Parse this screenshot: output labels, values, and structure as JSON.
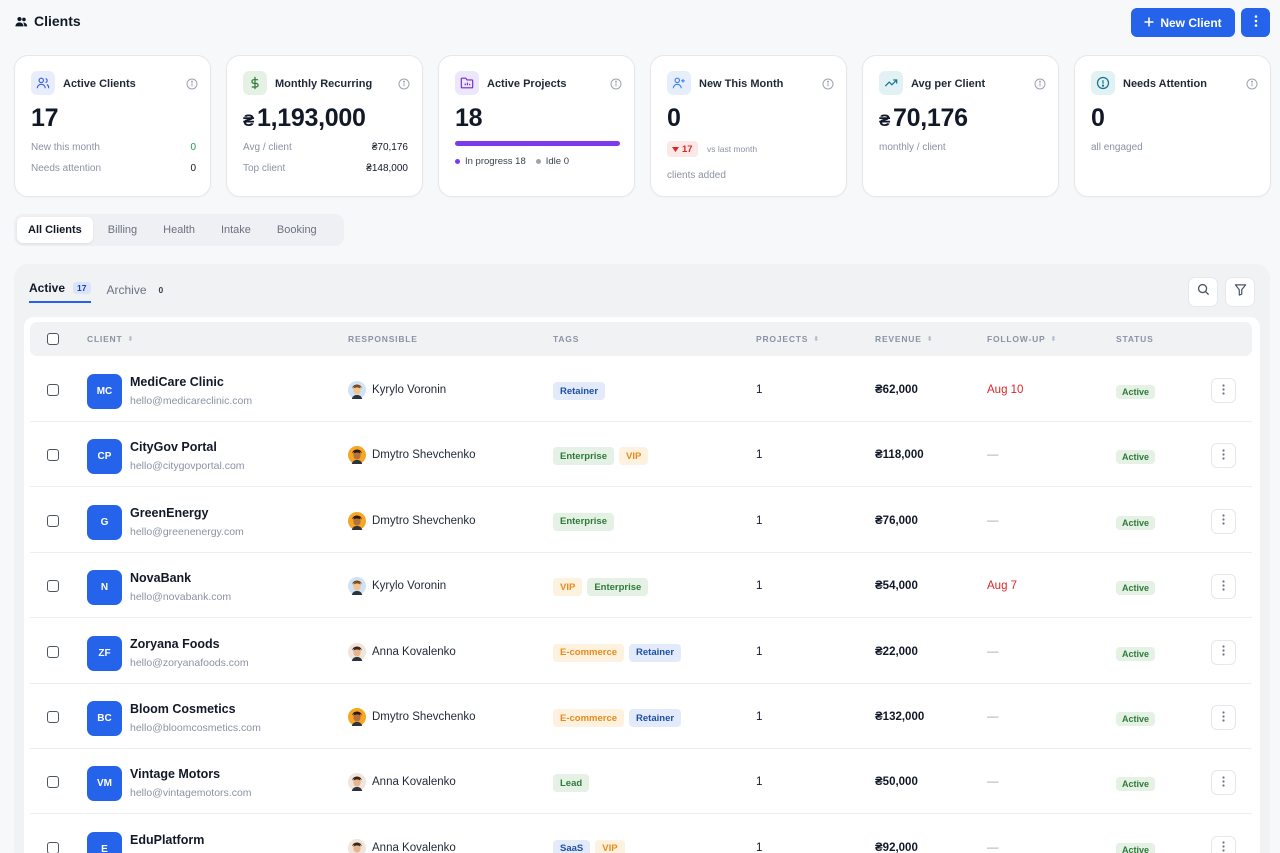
{
  "page": {
    "title": "Clients",
    "title_icon": "users-icon"
  },
  "toolbar": {
    "new_client_label": "New Client",
    "new_client_icon": "plus-icon",
    "more_icon": "kebab-icon"
  },
  "kpis": [
    {
      "id": "active-clients",
      "icon": "users-icon",
      "label": "Active Clients",
      "value": "17",
      "rows": [
        {
          "label": "New this month",
          "value": "0",
          "tone": "green"
        },
        {
          "label": "Needs attention",
          "value": "0"
        }
      ]
    },
    {
      "id": "monthly-recurring",
      "icon": "dollar-icon",
      "label": "Monthly Recurring",
      "currency": "₴",
      "value": "1,193,000",
      "rows": [
        {
          "label": "Avg / client",
          "value": "₴70,176"
        },
        {
          "label": "Top client",
          "value": "₴148,000"
        }
      ]
    },
    {
      "id": "active-projects",
      "icon": "folder-icon",
      "label": "Active Projects",
      "value": "18",
      "progress": 1.0,
      "legend": [
        {
          "label": "In progress 18",
          "color": "#7c3aed"
        },
        {
          "label": "Idle 0",
          "color": "#9ca3af"
        }
      ]
    },
    {
      "id": "new-this-month",
      "icon": "user-plus-icon",
      "label": "New This Month",
      "value": "0",
      "delta": "17",
      "delta_note": "vs last month",
      "sub": "clients added"
    },
    {
      "id": "avg-per-client",
      "icon": "trending-up-icon",
      "label": "Avg per Client",
      "currency": "₴",
      "value": "70,176",
      "sub": "monthly / client"
    },
    {
      "id": "needs-attention",
      "icon": "alert-circle-icon",
      "label": "Needs Attention",
      "value": "0",
      "sub": "all engaged"
    }
  ],
  "view_tabs": [
    "All Clients",
    "Billing",
    "Health",
    "Intake",
    "Booking"
  ],
  "list_tabs": [
    {
      "label": "Active",
      "count": "17"
    },
    {
      "label": "Archive",
      "count": "0"
    }
  ],
  "table": {
    "headers": {
      "client": "CLIENT",
      "responsible": "RESPONSIBLE",
      "tags": "TAGS",
      "projects": "PROJECTS",
      "revenue": "REVENUE",
      "followup": "FOLLOW-UP",
      "status": "STATUS"
    },
    "rows": [
      {
        "initials": "MC",
        "name": "MediCare Clinic",
        "email": "hello@medicareclinic.com",
        "responsible": "Kyrylo Voronin",
        "avatar": "kyrylo",
        "tags": [
          {
            "label": "Retainer",
            "tone": "blue"
          }
        ],
        "projects": "1",
        "revenue": "₴62,000",
        "followup": "Aug 10",
        "followup_due": true,
        "status": "Active"
      },
      {
        "initials": "CP",
        "name": "CityGov Portal",
        "email": "hello@citygovportal.com",
        "responsible": "Dmytro Shevchenko",
        "avatar": "dmytro",
        "tags": [
          {
            "label": "Enterprise",
            "tone": "green"
          },
          {
            "label": "VIP",
            "tone": "orange"
          }
        ],
        "projects": "1",
        "revenue": "₴118,000",
        "followup": "—",
        "followup_due": false,
        "status": "Active"
      },
      {
        "initials": "G",
        "name": "GreenEnergy",
        "email": "hello@greenenergy.com",
        "responsible": "Dmytro Shevchenko",
        "avatar": "dmytro",
        "tags": [
          {
            "label": "Enterprise",
            "tone": "green"
          }
        ],
        "projects": "1",
        "revenue": "₴76,000",
        "followup": "—",
        "followup_due": false,
        "status": "Active"
      },
      {
        "initials": "N",
        "name": "NovaBank",
        "email": "hello@novabank.com",
        "responsible": "Kyrylo Voronin",
        "avatar": "kyrylo",
        "tags": [
          {
            "label": "VIP",
            "tone": "orange"
          },
          {
            "label": "Enterprise",
            "tone": "green"
          }
        ],
        "projects": "1",
        "revenue": "₴54,000",
        "followup": "Aug 7",
        "followup_due": true,
        "status": "Active"
      },
      {
        "initials": "ZF",
        "name": "Zoryana Foods",
        "email": "hello@zoryanafoods.com",
        "responsible": "Anna Kovalenko",
        "avatar": "anna",
        "tags": [
          {
            "label": "E-commerce",
            "tone": "orange"
          },
          {
            "label": "Retainer",
            "tone": "blue"
          }
        ],
        "projects": "1",
        "revenue": "₴22,000",
        "followup": "—",
        "followup_due": false,
        "status": "Active"
      },
      {
        "initials": "BC",
        "name": "Bloom Cosmetics",
        "email": "hello@bloomcosmetics.com",
        "responsible": "Dmytro Shevchenko",
        "avatar": "dmytro",
        "tags": [
          {
            "label": "E-commerce",
            "tone": "orange"
          },
          {
            "label": "Retainer",
            "tone": "blue"
          }
        ],
        "projects": "1",
        "revenue": "₴132,000",
        "followup": "—",
        "followup_due": false,
        "status": "Active"
      },
      {
        "initials": "VM",
        "name": "Vintage Motors",
        "email": "hello@vintagemotors.com",
        "responsible": "Anna Kovalenko",
        "avatar": "anna",
        "tags": [
          {
            "label": "Lead",
            "tone": "green"
          }
        ],
        "projects": "1",
        "revenue": "₴50,000",
        "followup": "—",
        "followup_due": false,
        "status": "Active"
      },
      {
        "initials": "E",
        "name": "EduPlatform",
        "email": "",
        "responsible": "Anna Kovalenko",
        "avatar": "anna",
        "tags": [
          {
            "label": "SaaS",
            "tone": "blue"
          },
          {
            "label": "VIP",
            "tone": "orange"
          }
        ],
        "projects": "1",
        "revenue": "₴92,000",
        "followup": "—",
        "followup_due": false,
        "status": "Active"
      }
    ]
  },
  "colors": {
    "primary": "#2563eb",
    "purple": "#7c3aed",
    "danger": "#dc2626",
    "success": "#16a34a"
  }
}
